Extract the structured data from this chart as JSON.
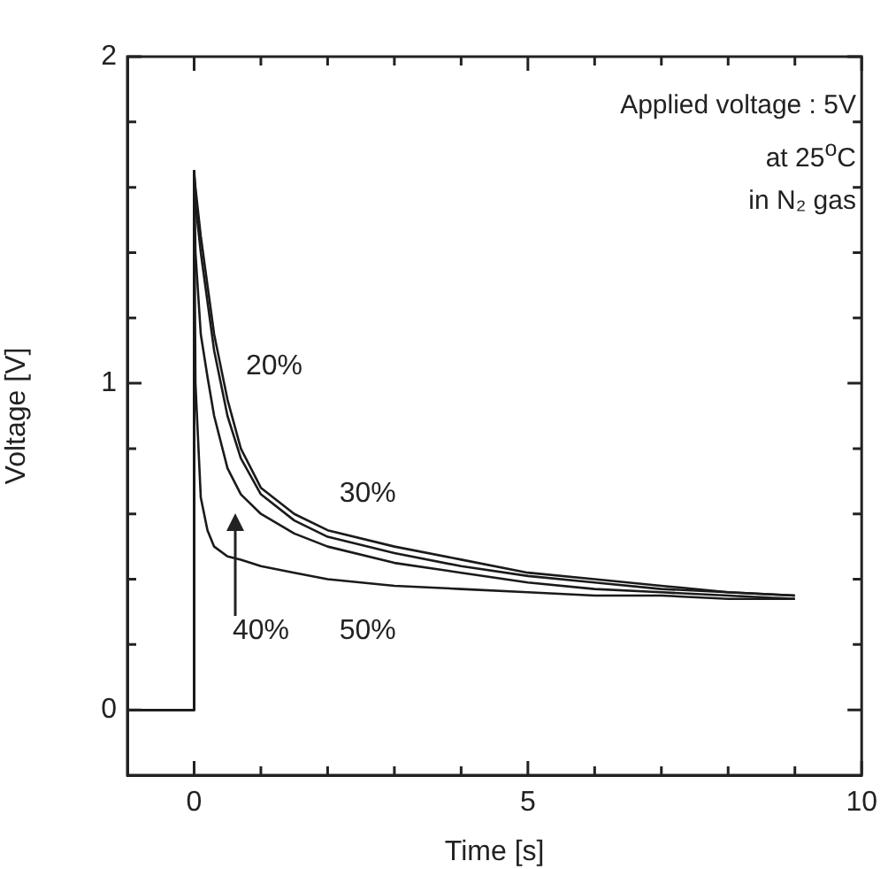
{
  "chart_data": {
    "type": "line",
    "xlabel": "Time [s]",
    "ylabel": "Voltage [V]",
    "annotations": [
      "Applied voltage : 5V",
      "at 25$^{o}$C",
      "in N₂ gas"
    ],
    "xlim": [
      -1,
      10
    ],
    "ylim": [
      -0.2,
      2
    ],
    "xticks": [
      0,
      {
        "value": 1,
        "label": null
      },
      {
        "value": 2,
        "label": null
      },
      {
        "value": 3,
        "label": null
      },
      {
        "value": 4,
        "label": null
      },
      5,
      {
        "value": 6,
        "label": null
      },
      {
        "value": 7,
        "label": null
      },
      {
        "value": 8,
        "label": null
      },
      {
        "value": 9,
        "label": null
      },
      10
    ],
    "yticks": [
      0,
      {
        "value": 0.2,
        "label": null
      },
      {
        "value": 0.4,
        "label": null
      },
      {
        "value": 0.6,
        "label": null
      },
      {
        "value": 0.8,
        "label": null
      },
      1,
      {
        "value": 1.2,
        "label": null
      },
      {
        "value": 1.4,
        "label": null
      },
      {
        "value": 1.6,
        "label": null
      },
      {
        "value": 1.8,
        "label": null
      },
      2
    ],
    "grid": false,
    "legend": false,
    "marker": "none",
    "line_style": "solid",
    "series": [
      {
        "name": "20%",
        "color": "#1a1a1a",
        "x": [
          -1,
          -0.5,
          -0.01,
          0,
          0.02,
          0.1,
          0.2,
          0.3,
          0.5,
          0.7,
          1,
          1.5,
          2,
          3,
          4,
          5,
          6,
          7,
          8,
          9
        ],
        "values": [
          0,
          0,
          0,
          1.65,
          1.6,
          1.45,
          1.3,
          1.15,
          0.95,
          0.8,
          0.68,
          0.6,
          0.55,
          0.5,
          0.46,
          0.42,
          0.4,
          0.38,
          0.36,
          0.35
        ]
      },
      {
        "name": "30%",
        "color": "#1a1a1a",
        "x": [
          -1,
          -0.5,
          -0.01,
          0,
          0.02,
          0.1,
          0.2,
          0.3,
          0.5,
          0.7,
          1,
          1.5,
          2,
          3,
          4,
          5,
          6,
          7,
          8,
          9
        ],
        "values": [
          0,
          0,
          0,
          1.65,
          1.55,
          1.4,
          1.25,
          1.1,
          0.9,
          0.77,
          0.66,
          0.58,
          0.53,
          0.48,
          0.44,
          0.41,
          0.39,
          0.37,
          0.36,
          0.35
        ]
      },
      {
        "name": "40%",
        "color": "#1a1a1a",
        "x": [
          -1,
          -0.5,
          -0.01,
          0,
          0.02,
          0.1,
          0.2,
          0.3,
          0.5,
          0.7,
          1,
          1.5,
          2,
          3,
          4,
          5,
          6,
          7,
          8,
          9
        ],
        "values": [
          0,
          0,
          0,
          1.65,
          1.4,
          1.15,
          1.02,
          0.9,
          0.74,
          0.66,
          0.6,
          0.54,
          0.5,
          0.45,
          0.42,
          0.39,
          0.37,
          0.36,
          0.35,
          0.34
        ]
      },
      {
        "name": "50%",
        "color": "#1a1a1a",
        "x": [
          -1,
          -0.5,
          -0.01,
          0,
          0.02,
          0.1,
          0.2,
          0.3,
          0.5,
          0.7,
          1,
          1.5,
          2,
          3,
          4,
          5,
          6,
          7,
          8,
          9
        ],
        "values": [
          0,
          0,
          0,
          1.65,
          1.0,
          0.65,
          0.55,
          0.5,
          0.47,
          0.46,
          0.44,
          0.42,
          0.4,
          0.38,
          0.37,
          0.36,
          0.35,
          0.35,
          0.34,
          0.34
        ]
      }
    ]
  }
}
